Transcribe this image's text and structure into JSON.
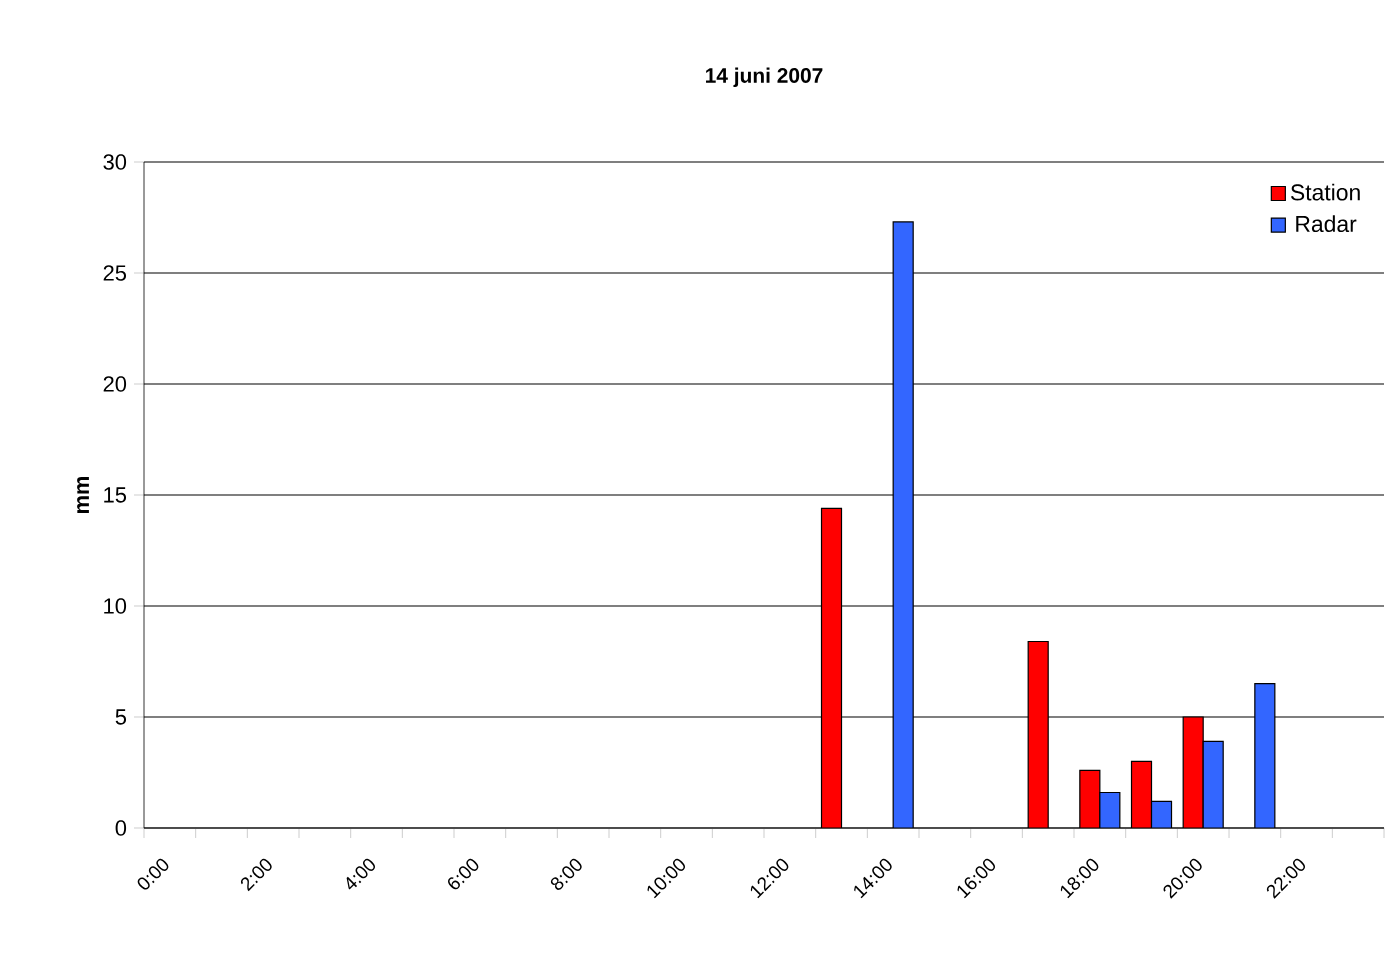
{
  "chart_data": {
    "type": "bar",
    "title": "14 juni 2007",
    "ylabel": "mm",
    "categories": [
      "0:00",
      null,
      "2:00",
      null,
      "4:00",
      null,
      "6:00",
      null,
      "8:00",
      null,
      "10:00",
      null,
      "12:00",
      null,
      "14:00",
      null,
      "16:00",
      null,
      "18:00",
      null,
      "20:00",
      null,
      "22:00",
      null
    ],
    "series": [
      {
        "name": "Station",
        "color": "#ff0000",
        "values": [
          null,
          null,
          null,
          null,
          null,
          null,
          null,
          null,
          null,
          null,
          null,
          null,
          null,
          14.4,
          null,
          null,
          null,
          8.4,
          2.6,
          3.0,
          5.0,
          null,
          null,
          null
        ]
      },
      {
        "name": "Radar",
        "color": "#3366ff",
        "values": [
          null,
          null,
          null,
          null,
          null,
          null,
          null,
          null,
          null,
          null,
          null,
          null,
          null,
          null,
          27.3,
          null,
          null,
          null,
          1.6,
          1.2,
          3.9,
          6.5,
          null,
          null
        ]
      }
    ],
    "ylim": [
      0,
      30
    ],
    "yticks": [
      0,
      5,
      10,
      15,
      20,
      25,
      30
    ],
    "grid": "y",
    "legend": "top right"
  }
}
